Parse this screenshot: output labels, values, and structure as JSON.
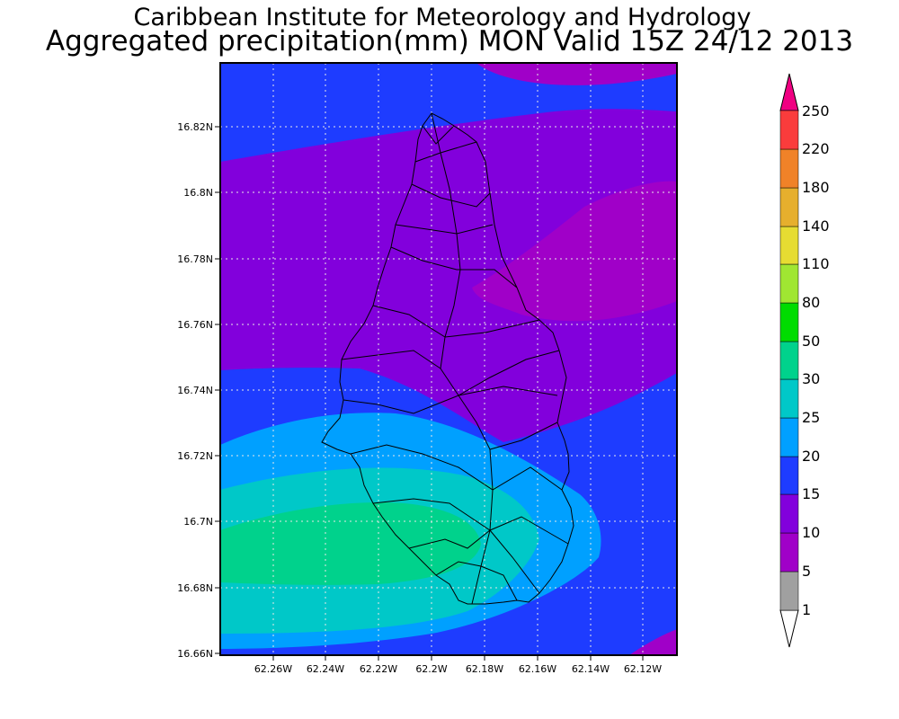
{
  "header": {
    "title_line1": "Caribbean Institute for Meteorology and Hydrology",
    "title_line2": "Aggregated precipitation(mm) MON Valid 15Z 24/12 2013"
  },
  "map": {
    "lat_labels": [
      "16.82N",
      "16.8N",
      "16.78N",
      "16.76N",
      "16.74N",
      "16.72N",
      "16.7N",
      "16.68N",
      "16.66N"
    ],
    "lon_labels": [
      "62.26W",
      "62.24W",
      "62.22W",
      "62.2W",
      "62.18W",
      "62.16W",
      "62.14W",
      "62.12W"
    ],
    "grid": true
  },
  "colorbar": {
    "levels": [
      "1",
      "5",
      "10",
      "15",
      "20",
      "25",
      "30",
      "50",
      "80",
      "110",
      "140",
      "180",
      "220",
      "250"
    ],
    "colors": [
      "#a0a0a0",
      "#a000c8",
      "#8200dc",
      "#1e3cff",
      "#00a0ff",
      "#00c8c8",
      "#00d28c",
      "#00dc00",
      "#a0e632",
      "#e6dc32",
      "#e6af2d",
      "#f08228",
      "#fa3c3c",
      "#f00082"
    ],
    "under_color": "#ffffff",
    "over_color": "#f00082"
  },
  "legend_colors": {
    "blue_15": "#1e3cff",
    "purple_10": "#8200dc",
    "magenta_5": "#a000c8",
    "lightblue_20": "#00a0ff",
    "teal_25": "#00c8c8",
    "green_30": "#00d28c"
  }
}
